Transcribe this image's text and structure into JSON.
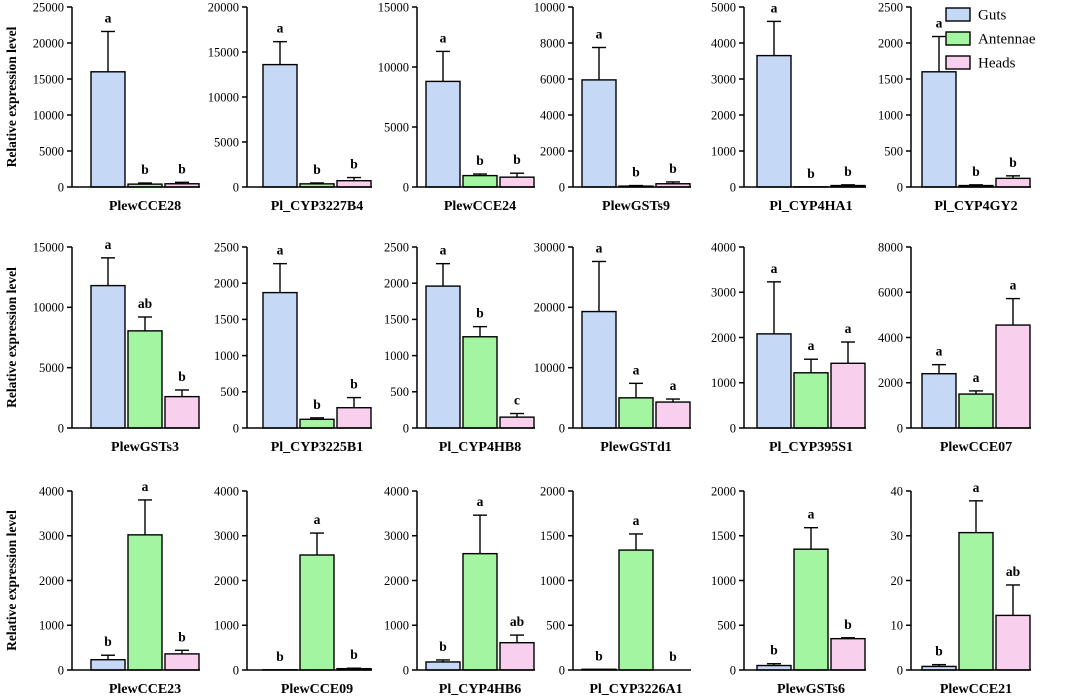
{
  "figure": {
    "legend_position": "top-right",
    "series": [
      {
        "name": "Guts",
        "color": "#c5d8f6"
      },
      {
        "name": "Antennae",
        "color": "#a4f5a2"
      },
      {
        "name": "Heads",
        "color": "#f9cfee"
      }
    ]
  },
  "chart_data": [
    {
      "type": "bar",
      "xlabel": "PlewCCE28",
      "ylabel": "Relative expression level",
      "ylim": [
        0,
        25000
      ],
      "yticks": [
        0,
        5000,
        10000,
        15000,
        20000,
        25000
      ],
      "values": [
        16000,
        400,
        450
      ],
      "errors": [
        5600,
        150,
        200
      ],
      "letters": [
        "a",
        "b",
        "b"
      ]
    },
    {
      "type": "bar",
      "xlabel": "Pl_CYP3227B4",
      "ylabel": "",
      "ylim": [
        0,
        20000
      ],
      "yticks": [
        0,
        5000,
        10000,
        15000,
        20000
      ],
      "values": [
        13600,
        350,
        700
      ],
      "errors": [
        2550,
        100,
        350
      ],
      "letters": [
        "a",
        "b",
        "b"
      ]
    },
    {
      "type": "bar",
      "xlabel": "PlewCCE24",
      "ylabel": "",
      "ylim": [
        0,
        15000
      ],
      "yticks": [
        0,
        5000,
        10000,
        15000
      ],
      "values": [
        8800,
        950,
        820
      ],
      "errors": [
        2500,
        130,
        330
      ],
      "letters": [
        "a",
        "b",
        "b"
      ]
    },
    {
      "type": "bar",
      "xlabel": "PlewGSTs9",
      "ylabel": "",
      "ylim": [
        0,
        10000
      ],
      "yticks": [
        0,
        2000,
        4000,
        6000,
        8000,
        10000
      ],
      "values": [
        5950,
        50,
        180
      ],
      "errors": [
        1800,
        30,
        100
      ],
      "letters": [
        "a",
        "b",
        "b"
      ]
    },
    {
      "type": "bar",
      "xlabel": "Pl_CYP4HA1",
      "ylabel": "",
      "ylim": [
        0,
        5000
      ],
      "yticks": [
        0,
        1000,
        2000,
        3000,
        4000,
        5000
      ],
      "values": [
        3650,
        5,
        40
      ],
      "errors": [
        950,
        0,
        20
      ],
      "letters": [
        "a",
        "b",
        "b"
      ]
    },
    {
      "type": "bar",
      "xlabel": "Pl_CYP4GY2",
      "ylabel": "",
      "ylim": [
        0,
        2500
      ],
      "yticks": [
        0,
        500,
        1000,
        1500,
        2000,
        2500
      ],
      "values": [
        1600,
        20,
        120
      ],
      "errors": [
        490,
        10,
        35
      ],
      "letters": [
        "a",
        "b",
        "b"
      ]
    },
    {
      "type": "bar",
      "xlabel": "PlewGSTs3",
      "ylabel": "Relative expression level",
      "ylim": [
        0,
        15000
      ],
      "yticks": [
        0,
        5000,
        10000,
        15000
      ],
      "values": [
        11800,
        8050,
        2600
      ],
      "errors": [
        2300,
        1150,
        550
      ],
      "letters": [
        "a",
        "ab",
        "b"
      ]
    },
    {
      "type": "bar",
      "xlabel": "Pl_CYP3225B1",
      "ylabel": "",
      "ylim": [
        0,
        2500
      ],
      "yticks": [
        0,
        500,
        1000,
        1500,
        2000,
        2500
      ],
      "values": [
        1870,
        120,
        280
      ],
      "errors": [
        400,
        20,
        140
      ],
      "letters": [
        "a",
        "b",
        "b"
      ]
    },
    {
      "type": "bar",
      "xlabel": "Pl_CYP4HB8",
      "ylabel": "",
      "ylim": [
        0,
        2500
      ],
      "yticks": [
        0,
        500,
        1000,
        1500,
        2000,
        2500
      ],
      "values": [
        1960,
        1260,
        150
      ],
      "errors": [
        310,
        140,
        50
      ],
      "letters": [
        "a",
        "b",
        "c"
      ]
    },
    {
      "type": "bar",
      "xlabel": "PlewGSTd1",
      "ylabel": "",
      "ylim": [
        0,
        30000
      ],
      "yticks": [
        0,
        10000,
        20000,
        30000
      ],
      "values": [
        19300,
        5000,
        4300
      ],
      "errors": [
        8300,
        2400,
        500
      ],
      "letters": [
        "a",
        "a",
        "a"
      ]
    },
    {
      "type": "bar",
      "xlabel": "Pl_CYP395S1",
      "ylabel": "",
      "ylim": [
        0,
        4000
      ],
      "yticks": [
        0,
        1000,
        2000,
        3000,
        4000
      ],
      "values": [
        2080,
        1220,
        1430
      ],
      "errors": [
        1150,
        300,
        470
      ],
      "letters": [
        "a",
        "a",
        "a"
      ]
    },
    {
      "type": "bar",
      "xlabel": "PlewCCE07",
      "ylabel": "",
      "ylim": [
        0,
        8000
      ],
      "yticks": [
        0,
        2000,
        4000,
        6000,
        8000
      ],
      "values": [
        2400,
        1500,
        4550
      ],
      "errors": [
        400,
        140,
        1170
      ],
      "letters": [
        "a",
        "a",
        "a"
      ]
    },
    {
      "type": "bar",
      "xlabel": "PlewCCE23",
      "ylabel": "Relative expression level",
      "ylim": [
        0,
        4000
      ],
      "yticks": [
        0,
        1000,
        2000,
        3000,
        4000
      ],
      "values": [
        230,
        3020,
        360
      ],
      "errors": [
        100,
        780,
        80
      ],
      "letters": [
        "b",
        "a",
        "b"
      ]
    },
    {
      "type": "bar",
      "xlabel": "PlewCCE09",
      "ylabel": "",
      "ylim": [
        0,
        4000
      ],
      "yticks": [
        0,
        1000,
        2000,
        3000,
        4000
      ],
      "values": [
        5,
        2570,
        30
      ],
      "errors": [
        0,
        490,
        10
      ],
      "letters": [
        "b",
        "a",
        "b"
      ]
    },
    {
      "type": "bar",
      "xlabel": "Pl_CYP4HB6",
      "ylabel": "",
      "ylim": [
        0,
        4000
      ],
      "yticks": [
        0,
        1000,
        2000,
        3000,
        4000
      ],
      "values": [
        180,
        2600,
        610
      ],
      "errors": [
        45,
        860,
        170
      ],
      "letters": [
        "b",
        "a",
        "ab"
      ]
    },
    {
      "type": "bar",
      "xlabel": "Pl_CYP3226A1",
      "ylabel": "",
      "ylim": [
        0,
        2000
      ],
      "yticks": [
        0,
        500,
        1000,
        1500,
        2000
      ],
      "values": [
        8,
        1340,
        0
      ],
      "errors": [
        0,
        180,
        0
      ],
      "letters": [
        "b",
        "a",
        "b"
      ]
    },
    {
      "type": "bar",
      "xlabel": "PlewGSTs6",
      "ylabel": "",
      "ylim": [
        0,
        2000
      ],
      "yticks": [
        0,
        500,
        1000,
        1500,
        2000
      ],
      "values": [
        50,
        1350,
        350
      ],
      "errors": [
        20,
        240,
        10
      ],
      "letters": [
        "b",
        "a",
        "b"
      ]
    },
    {
      "type": "bar",
      "xlabel": "PlewCCE21",
      "ylabel": "",
      "ylim": [
        0,
        40
      ],
      "yticks": [
        0,
        10,
        20,
        30,
        40
      ],
      "values": [
        0.8,
        30.7,
        12.2
      ],
      "errors": [
        0.4,
        7.1,
        6.8
      ],
      "letters": [
        "b",
        "a",
        "ab"
      ]
    }
  ]
}
